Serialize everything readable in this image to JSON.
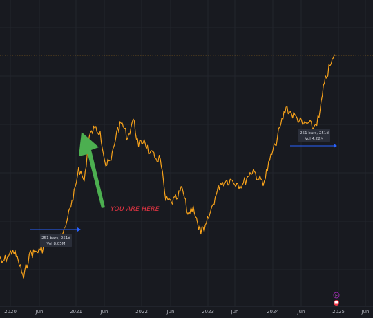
{
  "colors": {
    "background": "#181a20",
    "grid": "#22252d",
    "series": "#f7a21b",
    "price_line": "#f7a21b",
    "measure_arrow": "#2962ff",
    "annotation_arrow": "#4caf50",
    "annotation_text": "#f23645",
    "axis_text": "#b2b5be"
  },
  "chart_data": {
    "type": "line",
    "grid": true,
    "y_axis": "hidden",
    "x_ticks": [
      "2020",
      "Jun",
      "2021",
      "Jun",
      "2022",
      "Jun",
      "2023",
      "Jun",
      "2024",
      "Jun",
      "2025",
      "Jun"
    ],
    "series": [
      {
        "x": [
          "2019-10",
          "2019-11",
          "2019-12",
          "2020-01",
          "2020-02",
          "2020-03",
          "2020-04",
          "2020-05",
          "2020-06",
          "2020-07",
          "2020-08",
          "2020-09",
          "2020-10",
          "2020-11",
          "2020-12",
          "2021-01",
          "2021-02",
          "2021-03",
          "2021-04",
          "2021-05",
          "2021-06",
          "2021-07",
          "2021-08",
          "2021-09",
          "2021-10",
          "2021-11",
          "2021-12",
          "2022-01",
          "2022-02",
          "2022-03",
          "2022-04",
          "2022-05",
          "2022-06",
          "2022-07",
          "2022-08",
          "2022-09",
          "2022-10",
          "2022-11",
          "2022-12",
          "2023-01",
          "2023-02",
          "2023-03",
          "2023-04",
          "2023-05",
          "2023-06",
          "2023-07",
          "2023-08",
          "2023-09",
          "2023-10",
          "2023-11",
          "2023-12",
          "2024-01",
          "2024-02",
          "2024-03",
          "2024-04",
          "2024-05",
          "2024-06",
          "2024-07",
          "2024-08",
          "2024-09",
          "2024-10",
          "2024-11",
          "2024-12"
        ],
        "values": [
          70,
          60,
          68,
          78,
          62,
          38,
          72,
          75,
          78,
          85,
          92,
          92,
          100,
          125,
          150,
          198,
          178,
          242,
          255,
          250,
          200,
          208,
          250,
          262,
          240,
          268,
          228,
          238,
          218,
          212,
          210,
          150,
          148,
          152,
          168,
          130,
          142,
          108,
          105,
          130,
          155,
          175,
          178,
          180,
          175,
          172,
          185,
          195,
          180,
          178,
          208,
          230,
          260,
          285,
          275,
          270,
          260,
          262,
          255,
          270,
          320,
          345,
          360
        ]
      }
    ],
    "annotations": {
      "text": "YOU ARE HERE",
      "measure_boxes": [
        {
          "line1": "251 bars, 251d",
          "line2": "Vol 8.05M"
        },
        {
          "line1": "251 bars, 251d",
          "line2": "Vol 4.22M"
        }
      ],
      "price_line": true,
      "events_marker": "E",
      "flag_marker": "flag-icon"
    }
  }
}
